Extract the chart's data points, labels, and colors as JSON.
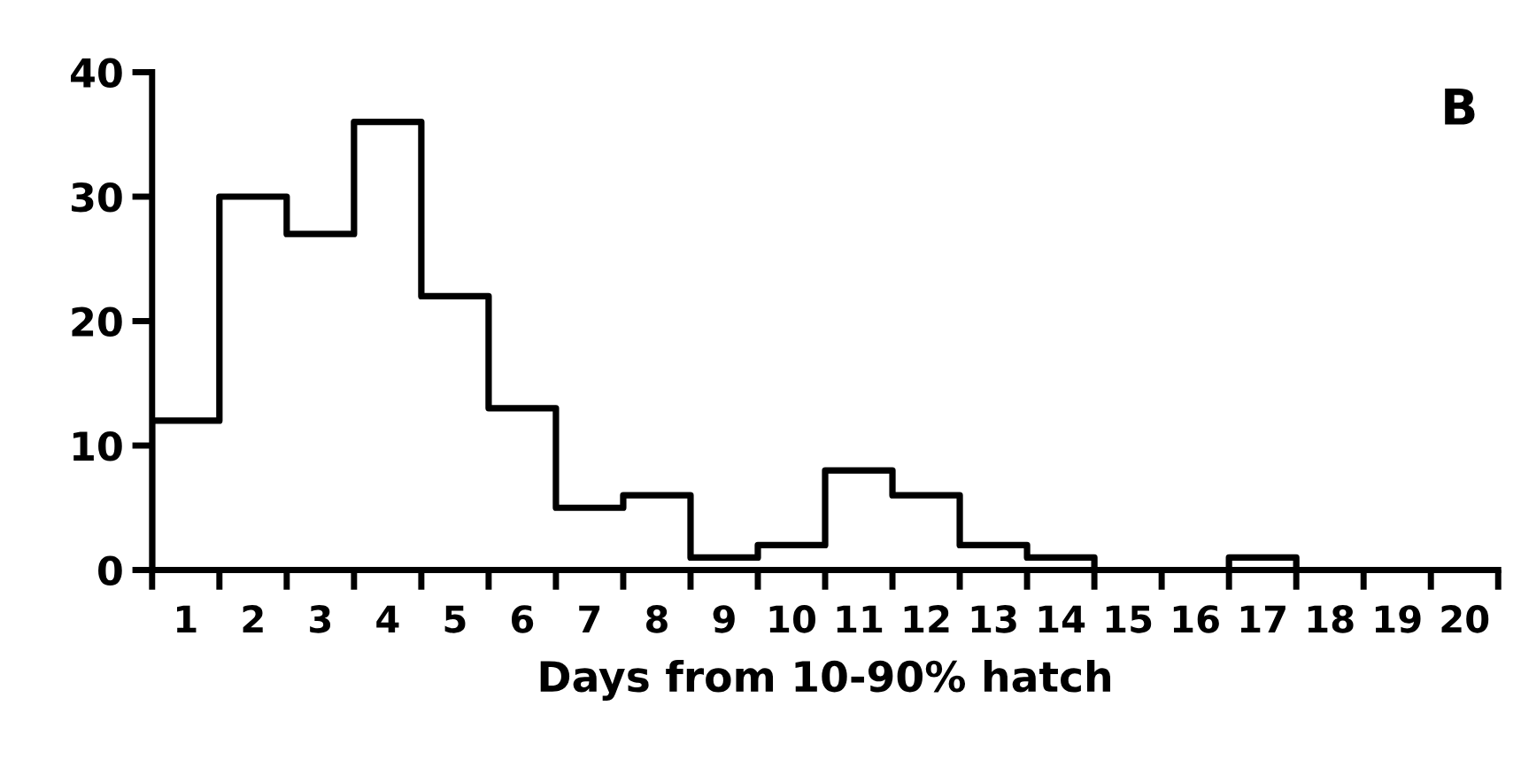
{
  "chart_data": {
    "type": "histogram",
    "xlabel": "Days from 10-90% hatch",
    "annotations": [
      "B"
    ],
    "bins": [
      0.5,
      1.5,
      2.5,
      3.5,
      4.5,
      5.5,
      6.5,
      7.5,
      8.5,
      9.5,
      10.5,
      11.5,
      12.5,
      13.5,
      14.5,
      15.5,
      16.5,
      17.5,
      18.5,
      19.5,
      20.5
    ],
    "values": [
      12,
      30,
      27,
      36,
      22,
      13,
      5,
      6,
      1,
      2,
      8,
      6,
      2,
      1,
      0,
      0,
      1,
      0,
      0,
      0
    ],
    "color": "#000000",
    "xlim": [
      0.5,
      20.5
    ],
    "ylim": [
      0,
      40
    ],
    "yticks": [
      0,
      10,
      20,
      30,
      40
    ],
    "xticks": [
      1,
      2,
      3,
      4,
      5,
      6,
      7,
      8,
      9,
      10,
      11,
      12,
      13,
      14,
      15,
      16,
      17,
      18,
      19,
      20,
      {
        "value": 0.5,
        "label": null
      },
      {
        "value": 1.5,
        "label": null
      },
      {
        "value": 2.5,
        "label": null
      },
      {
        "value": 3.5,
        "label": null
      },
      {
        "value": 4.5,
        "label": null
      },
      {
        "value": 5.5,
        "label": null
      },
      {
        "value": 6.5,
        "label": null
      },
      {
        "value": 7.5,
        "label": null
      },
      {
        "value": 8.5,
        "label": null
      },
      {
        "value": 9.5,
        "label": null
      },
      {
        "value": 10.5,
        "label": null
      },
      {
        "value": 11.5,
        "label": null
      },
      {
        "value": 12.5,
        "label": null
      },
      {
        "value": 13.5,
        "label": null
      },
      {
        "value": 14.5,
        "label": null
      },
      {
        "value": 15.5,
        "label": null
      },
      {
        "value": 16.5,
        "label": null
      },
      {
        "value": 17.5,
        "label": null
      },
      {
        "value": 18.5,
        "label": null
      },
      {
        "value": 19.5,
        "label": null
      },
      {
        "value": 20.5,
        "label": null
      }
    ],
    "grid": false
  }
}
